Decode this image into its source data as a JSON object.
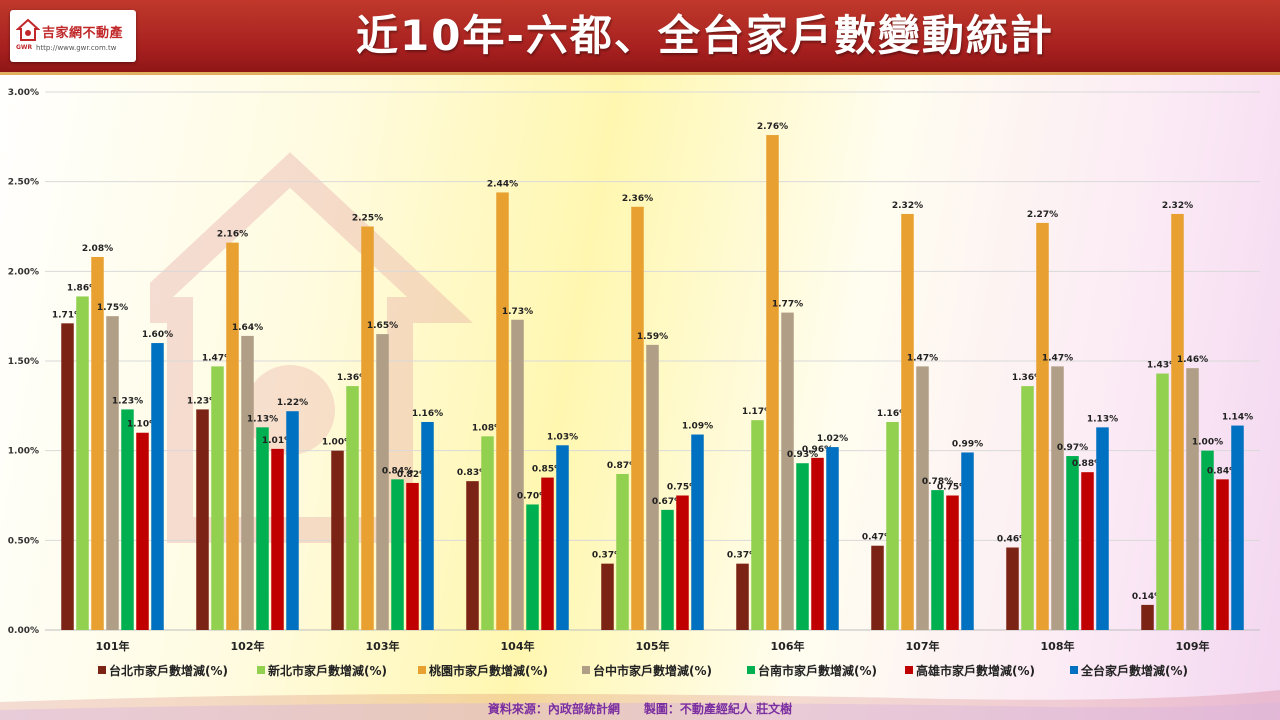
{
  "header": {
    "title": "近10年-六都、全台家戶數變動統計",
    "logo_text": "吉家網不動產",
    "logo_gwr": "GWR",
    "logo_url": "http://www.gwr.com.tw",
    "background_color": "#a61f1f"
  },
  "footer": {
    "source": "資料來源：內政部統計網　　製圖：不動產經紀人  莊文樹"
  },
  "chart_data": {
    "type": "bar",
    "categories": [
      "101年",
      "102年",
      "103年",
      "104年",
      "105年",
      "106年",
      "107年",
      "108年",
      "109年"
    ],
    "ylim": [
      0,
      3.0
    ],
    "yticks": [
      "0.00%",
      "0.50%",
      "1.00%",
      "1.50%",
      "2.00%",
      "2.50%",
      "3.00%"
    ],
    "grid": true,
    "legend_position": "bottom",
    "series": [
      {
        "name": "台北市家戶數增減(%)",
        "color": "#7b2314",
        "values": [
          1.71,
          1.23,
          1.0,
          0.83,
          0.37,
          0.37,
          0.47,
          0.46,
          0.14
        ],
        "labels": [
          "1.71%",
          "1.23%",
          "1.00%",
          "0.83%",
          "0.37%",
          "0.37%",
          "0.47%",
          "0.46%",
          "0.14%"
        ]
      },
      {
        "name": "新北市家戶數增減(%)",
        "color": "#92d050",
        "values": [
          1.86,
          1.47,
          1.36,
          1.08,
          0.87,
          1.17,
          1.16,
          1.36,
          1.43
        ],
        "labels": [
          "1.86%",
          "1.47%",
          "1.36%",
          "1.08%",
          "0.87%",
          "1.17%",
          "1.16%",
          "1.36%",
          "1.43%"
        ]
      },
      {
        "name": "桃園市家戶數增減(%)",
        "color": "#e8a030",
        "values": [
          2.08,
          2.16,
          2.25,
          2.44,
          2.36,
          2.76,
          2.32,
          2.27,
          2.32
        ],
        "labels": [
          "2.08%",
          "2.16%",
          "2.25%",
          "2.44%",
          "2.36%",
          "2.76%",
          "2.32%",
          "2.27%",
          "2.32%"
        ]
      },
      {
        "name": "台中市家戶數增減(%)",
        "color": "#b09e86",
        "values": [
          1.75,
          1.64,
          1.65,
          1.73,
          1.59,
          1.77,
          1.47,
          1.47,
          1.46
        ],
        "labels": [
          "1.75%",
          "1.64%",
          "1.65%",
          "1.73%",
          "1.59%",
          "1.77%",
          "1.47%",
          "1.47%",
          "1.46%"
        ]
      },
      {
        "name": "台南市家戶數增減(%)",
        "color": "#00b050",
        "values": [
          1.23,
          1.13,
          0.84,
          0.7,
          0.67,
          0.93,
          0.78,
          0.97,
          1.0
        ],
        "labels": [
          "1.23%",
          "1.13%",
          "0.84%",
          "0.70%",
          "0.67%",
          "0.93%",
          "0.78%",
          "0.97%",
          "1.00%"
        ]
      },
      {
        "name": "高雄市家戶數增減(%)",
        "color": "#c00000",
        "values": [
          1.1,
          1.01,
          0.82,
          0.85,
          0.75,
          0.96,
          0.75,
          0.88,
          0.84
        ],
        "labels": [
          "1.10%",
          "1.01%",
          "0.82%",
          "0.85%",
          "0.75%",
          "0.96%",
          "0.75%",
          "0.88%",
          "0.84%"
        ]
      },
      {
        "name": "全台家戶數增減(%)",
        "color": "#0070c0",
        "values": [
          1.6,
          1.22,
          1.16,
          1.03,
          1.09,
          1.02,
          0.99,
          1.13,
          1.14
        ],
        "labels": [
          "1.60%",
          "1.22%",
          "1.16%",
          "1.03%",
          "1.09%",
          "1.02%",
          "0.99%",
          "1.13%",
          "1.14%"
        ]
      }
    ]
  }
}
